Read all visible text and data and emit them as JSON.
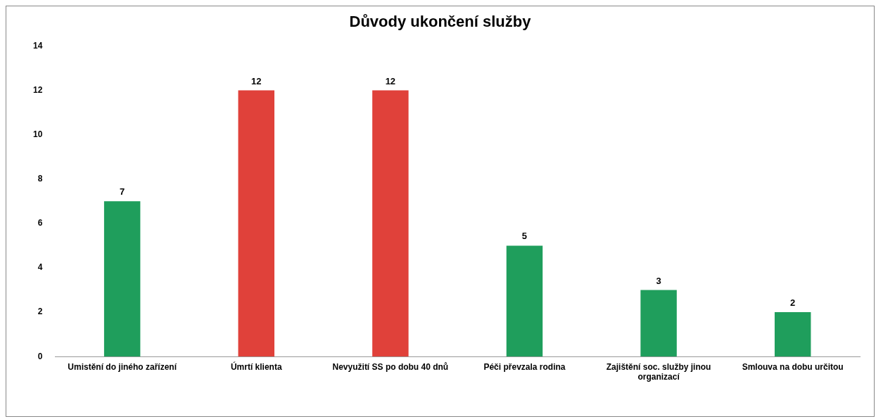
{
  "chart_data": {
    "type": "bar",
    "title": "Důvody ukončení služby",
    "categories": [
      "Umistění do jiného zařízení",
      "Úmrtí klienta",
      "Nevyužití SS po dobu 40 dnů",
      "Péči převzala rodina",
      "Zajištění soc. služby jinou organizací",
      "Smlouva na dobu určitou"
    ],
    "values": [
      7,
      12,
      12,
      5,
      3,
      2
    ],
    "colors": [
      "#1f9e5c",
      "#e0413a",
      "#e0413a",
      "#1f9e5c",
      "#1f9e5c",
      "#1f9e5c"
    ],
    "ylim": [
      0,
      14
    ],
    "yticks": [
      0,
      2,
      4,
      6,
      8,
      10,
      12,
      14
    ],
    "grid": false,
    "data_labels": true
  }
}
